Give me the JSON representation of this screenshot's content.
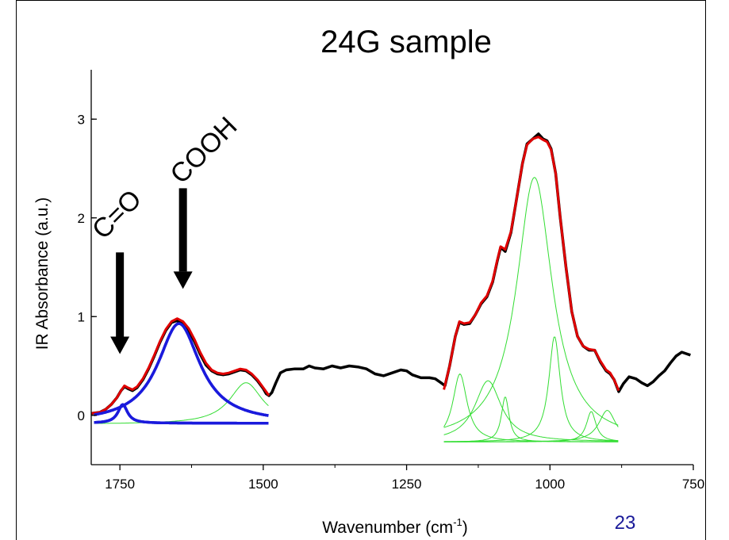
{
  "slide_number": "23",
  "chart_data": {
    "type": "line",
    "title": "24G sample",
    "xlabel_main": "Wavenumber (cm",
    "xlabel_sup": "-1",
    "xlabel_close": ")",
    "ylabel": "IR Absorbance (a.u.)",
    "xlim": [
      1800,
      750
    ],
    "ylim": [
      -0.5,
      3.5
    ],
    "x_reversed": true,
    "grid": false,
    "x_ticks": [
      1750,
      1500,
      1250,
      1000,
      750
    ],
    "x_tick_labels": [
      "1750",
      "1500",
      "1250",
      "1000",
      "750"
    ],
    "y_ticks": [
      0,
      1,
      2,
      3
    ],
    "y_tick_labels": [
      "0",
      "1",
      "2",
      "3"
    ],
    "annotations": [
      {
        "text": "C=O",
        "x": 1750,
        "arrow_top": 1.65,
        "arrow_bottom": 0.62
      },
      {
        "text": "COOH",
        "x": 1640,
        "arrow_top": 2.3,
        "arrow_bottom": 1.28
      }
    ],
    "colors": {
      "measured": "#000000",
      "fit": "#e00000",
      "components_carbonyl": "#1a1adc",
      "components_fingerprint": "#33dd33",
      "slide_number": "#1a1a99"
    },
    "series": [
      {
        "role": "measured",
        "color": "#000000",
        "width": 3.5,
        "points": [
          [
            1800,
            0.02
          ],
          [
            1785,
            0.03
          ],
          [
            1775,
            0.06
          ],
          [
            1765,
            0.11
          ],
          [
            1755,
            0.18
          ],
          [
            1748,
            0.25
          ],
          [
            1742,
            0.29
          ],
          [
            1736,
            0.27
          ],
          [
            1728,
            0.25
          ],
          [
            1720,
            0.28
          ],
          [
            1710,
            0.36
          ],
          [
            1700,
            0.47
          ],
          [
            1690,
            0.6
          ],
          [
            1680,
            0.74
          ],
          [
            1670,
            0.86
          ],
          [
            1660,
            0.94
          ],
          [
            1650,
            0.96
          ],
          [
            1640,
            0.93
          ],
          [
            1630,
            0.86
          ],
          [
            1620,
            0.75
          ],
          [
            1610,
            0.62
          ],
          [
            1600,
            0.51
          ],
          [
            1590,
            0.45
          ],
          [
            1580,
            0.42
          ],
          [
            1570,
            0.41
          ],
          [
            1560,
            0.42
          ],
          [
            1550,
            0.44
          ],
          [
            1540,
            0.46
          ],
          [
            1530,
            0.45
          ],
          [
            1520,
            0.41
          ],
          [
            1510,
            0.35
          ],
          [
            1500,
            0.27
          ],
          [
            1495,
            0.22
          ],
          [
            1490,
            0.2
          ],
          [
            1485,
            0.23
          ],
          [
            1478,
            0.33
          ],
          [
            1470,
            0.43
          ],
          [
            1460,
            0.46
          ],
          [
            1445,
            0.47
          ],
          [
            1430,
            0.47
          ],
          [
            1420,
            0.5
          ],
          [
            1410,
            0.48
          ],
          [
            1395,
            0.47
          ],
          [
            1380,
            0.5
          ],
          [
            1365,
            0.48
          ],
          [
            1350,
            0.5
          ],
          [
            1335,
            0.49
          ],
          [
            1320,
            0.47
          ],
          [
            1305,
            0.42
          ],
          [
            1290,
            0.4
          ],
          [
            1275,
            0.43
          ],
          [
            1260,
            0.46
          ],
          [
            1250,
            0.45
          ],
          [
            1240,
            0.41
          ],
          [
            1225,
            0.38
          ],
          [
            1210,
            0.38
          ],
          [
            1200,
            0.37
          ],
          [
            1190,
            0.33
          ],
          [
            1183,
            0.3
          ],
          [
            1175,
            0.5
          ],
          [
            1165,
            0.8
          ],
          [
            1158,
            0.94
          ],
          [
            1150,
            0.92
          ],
          [
            1140,
            0.93
          ],
          [
            1130,
            1.02
          ],
          [
            1120,
            1.13
          ],
          [
            1110,
            1.2
          ],
          [
            1100,
            1.35
          ],
          [
            1092,
            1.56
          ],
          [
            1086,
            1.7
          ],
          [
            1078,
            1.66
          ],
          [
            1068,
            1.85
          ],
          [
            1058,
            2.2
          ],
          [
            1048,
            2.55
          ],
          [
            1040,
            2.75
          ],
          [
            1030,
            2.8
          ],
          [
            1020,
            2.85
          ],
          [
            1012,
            2.8
          ],
          [
            1005,
            2.78
          ],
          [
            998,
            2.7
          ],
          [
            990,
            2.45
          ],
          [
            982,
            2.0
          ],
          [
            972,
            1.5
          ],
          [
            962,
            1.05
          ],
          [
            952,
            0.8
          ],
          [
            942,
            0.7
          ],
          [
            932,
            0.66
          ],
          [
            922,
            0.66
          ],
          [
            912,
            0.54
          ],
          [
            902,
            0.45
          ],
          [
            895,
            0.42
          ],
          [
            888,
            0.36
          ],
          [
            880,
            0.24
          ],
          [
            872,
            0.32
          ],
          [
            862,
            0.39
          ],
          [
            850,
            0.37
          ],
          [
            840,
            0.33
          ],
          [
            830,
            0.3
          ],
          [
            820,
            0.34
          ],
          [
            810,
            0.4
          ],
          [
            800,
            0.45
          ],
          [
            790,
            0.53
          ],
          [
            780,
            0.6
          ],
          [
            770,
            0.64
          ],
          [
            760,
            0.62
          ],
          [
            755,
            0.61
          ]
        ]
      },
      {
        "role": "fit",
        "color": "#e00000",
        "width": 3,
        "segments": [
          [
            [
              1800,
              0.02
            ],
            [
              1785,
              0.03
            ],
            [
              1775,
              0.06
            ],
            [
              1765,
              0.11
            ],
            [
              1755,
              0.18
            ],
            [
              1748,
              0.25
            ],
            [
              1742,
              0.3
            ],
            [
              1736,
              0.28
            ],
            [
              1728,
              0.26
            ],
            [
              1720,
              0.29
            ],
            [
              1710,
              0.37
            ],
            [
              1700,
              0.48
            ],
            [
              1690,
              0.61
            ],
            [
              1680,
              0.75
            ],
            [
              1670,
              0.87
            ],
            [
              1660,
              0.95
            ],
            [
              1650,
              0.98
            ],
            [
              1640,
              0.95
            ],
            [
              1630,
              0.88
            ],
            [
              1620,
              0.77
            ],
            [
              1610,
              0.64
            ],
            [
              1600,
              0.53
            ],
            [
              1590,
              0.46
            ],
            [
              1580,
              0.43
            ],
            [
              1570,
              0.42
            ],
            [
              1560,
              0.43
            ],
            [
              1550,
              0.45
            ],
            [
              1540,
              0.47
            ],
            [
              1530,
              0.46
            ],
            [
              1520,
              0.42
            ],
            [
              1510,
              0.36
            ],
            [
              1500,
              0.28
            ],
            [
              1490,
              0.2
            ]
          ],
          [
            [
              1185,
              0.26
            ],
            [
              1175,
              0.5
            ],
            [
              1165,
              0.8
            ],
            [
              1158,
              0.95
            ],
            [
              1150,
              0.93
            ],
            [
              1140,
              0.94
            ],
            [
              1130,
              1.02
            ],
            [
              1120,
              1.14
            ],
            [
              1110,
              1.21
            ],
            [
              1100,
              1.36
            ],
            [
              1092,
              1.57
            ],
            [
              1086,
              1.71
            ],
            [
              1078,
              1.68
            ],
            [
              1068,
              1.86
            ],
            [
              1058,
              2.2
            ],
            [
              1048,
              2.55
            ],
            [
              1040,
              2.74
            ],
            [
              1030,
              2.8
            ],
            [
              1020,
              2.82
            ],
            [
              1012,
              2.79
            ],
            [
              1005,
              2.77
            ],
            [
              998,
              2.69
            ],
            [
              990,
              2.45
            ],
            [
              982,
              2.0
            ],
            [
              972,
              1.5
            ],
            [
              962,
              1.05
            ],
            [
              952,
              0.8
            ],
            [
              942,
              0.7
            ],
            [
              932,
              0.67
            ],
            [
              922,
              0.66
            ],
            [
              912,
              0.55
            ],
            [
              902,
              0.46
            ],
            [
              895,
              0.43
            ],
            [
              888,
              0.36
            ],
            [
              880,
              0.25
            ]
          ]
        ]
      },
      {
        "role": "component",
        "color": "#1a1adc",
        "width": 3.5,
        "baseline": -0.08,
        "x_range": [
          1795,
          1490
        ],
        "peaks": [
          {
            "center": 1745,
            "height": 0.19,
            "hwhm": 10
          },
          {
            "center": 1647,
            "height": 1.01,
            "hwhm": 45
          }
        ]
      },
      {
        "role": "component",
        "color": "#33dd33",
        "width": 1,
        "baseline": -0.09,
        "x_range": [
          1795,
          1490
        ],
        "peaks": [
          {
            "center": 1530,
            "height": 0.42,
            "hwhm": 35
          }
        ]
      },
      {
        "role": "component",
        "color": "#33dd33",
        "width": 1,
        "baseline": -0.27,
        "x_range": [
          1185,
          880
        ],
        "peaks": [
          {
            "center": 1157,
            "height": 0.69,
            "hwhm": 15
          },
          {
            "center": 1108,
            "height": 0.62,
            "hwhm": 28
          },
          {
            "center": 1078,
            "height": 0.46,
            "hwhm": 8
          },
          {
            "center": 1027,
            "height": 2.68,
            "hwhm": 38
          },
          {
            "center": 992,
            "height": 1.07,
            "hwhm": 12
          },
          {
            "center": 928,
            "height": 0.31,
            "hwhm": 10
          },
          {
            "center": 900,
            "height": 0.32,
            "hwhm": 18
          }
        ]
      }
    ]
  }
}
